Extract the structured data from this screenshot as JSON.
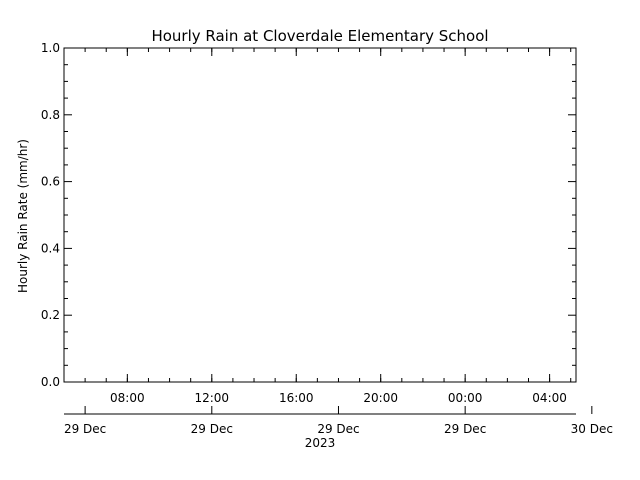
{
  "chart_data": {
    "type": "line",
    "title": "Hourly Rain at Cloverdale Elementary School",
    "xlabel": "",
    "ylabel": "Hourly Rain Rate (mm/hr)",
    "ylim": [
      0,
      1
    ],
    "yticks": [
      0.0,
      0.2,
      0.4,
      0.6,
      0.8,
      1.0
    ],
    "ytick_labels": [
      "0.0",
      "0.2",
      "0.4",
      "0.6",
      "0.8",
      "1.0"
    ],
    "xlim": [
      "2023-12-29T05:00",
      "2023-12-30T05:15"
    ],
    "xticks_time": [
      {
        "t": "2023-12-29T08:00",
        "label": "08:00"
      },
      {
        "t": "2023-12-29T12:00",
        "label": "12:00"
      },
      {
        "t": "2023-12-29T16:00",
        "label": "16:00"
      },
      {
        "t": "2023-12-29T20:00",
        "label": "20:00"
      },
      {
        "t": "2023-12-30T00:00",
        "label": "00:00"
      },
      {
        "t": "2023-12-30T04:00",
        "label": "04:00"
      }
    ],
    "xticks_date": [
      {
        "t": "2023-12-29T06:00",
        "label": "29 Dec"
      },
      {
        "t": "2023-12-29T12:00",
        "label": "29 Dec"
      },
      {
        "t": "2023-12-29T18:00",
        "label": "29 Dec"
      },
      {
        "t": "2023-12-30T00:00",
        "label": "29 Dec"
      },
      {
        "t": "2023-12-30T06:00",
        "label": "30 Dec"
      }
    ],
    "year_label": "2023",
    "series": [],
    "grid": false
  }
}
